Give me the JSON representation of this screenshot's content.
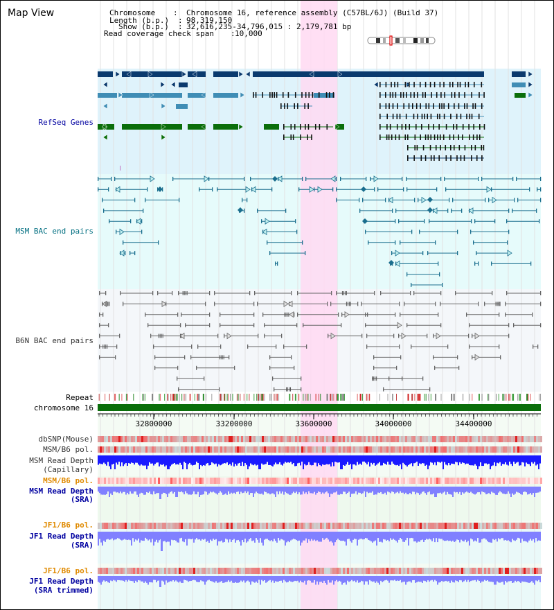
{
  "page_title": "Map View",
  "header": {
    "chromosome_key": "Chromosome",
    "chromosome_val": "Chromosome 16, reference assembly (C57BL/6J) (Build 37)",
    "length_key": "Length (b.p.)",
    "length_val": "98,319,150",
    "show_key": "Show (b.p.)",
    "show_val": "32,616,235-34,796,015 : 2,179,781 bp",
    "span_key": "Read coverage check span",
    "span_val": "10,000"
  },
  "tracks": {
    "refseq": "RefSeq Genes",
    "msm_bac": "MSM BAC end pairs",
    "b6n_bac": "B6N BAC end pairs",
    "repeat": "Repeat",
    "chromosome": "chromosome 16",
    "dbsnp": "dbSNP(Mouse)",
    "msm_b6_pol_1": "MSM/B6 pol.",
    "msm_read_depth_cap_1": "MSM Read Depth",
    "msm_read_depth_cap_2": "(Capillary)",
    "msm_b6_pol_2": "MSM/B6 pol.",
    "msm_read_depth_sra_1": "MSM Read Depth",
    "msm_read_depth_sra_2": "(SRA)",
    "jf1_b6_pol_1": "JF1/B6 pol.",
    "jf1_read_depth_sra_1": "JF1 Read Depth",
    "jf1_read_depth_sra_2": "(SRA)",
    "jf1_b6_pol_2": "JF1/B6 pol.",
    "jf1_read_depth_trim_1": "JF1 Read Depth",
    "jf1_read_depth_trim_2": "(SRA trimmed)"
  },
  "axis_ticks": [
    "32800000",
    "33200000",
    "33600000",
    "34000000",
    "34400000"
  ],
  "colors": {
    "refseq_bg": "#dff3fb",
    "msm_bg": "#e6fbfb",
    "b6n_bg": "#f4f7fa",
    "highlight": "#ffd9f2",
    "gene_dark": "#0a3a6e",
    "gene_mid": "#3f8db5",
    "gene_green": "#0a6e0a",
    "msm_line": "#1a6e8e",
    "b6n_line": "#666666",
    "chrom_green": "#0a6e0a",
    "depth_blue": "#1a1aff",
    "depth_light": "#8080ff",
    "label_blue": "#0000a0",
    "label_teal": "#006e80",
    "label_orange": "#e08a00",
    "label_gray": "#333333"
  }
}
